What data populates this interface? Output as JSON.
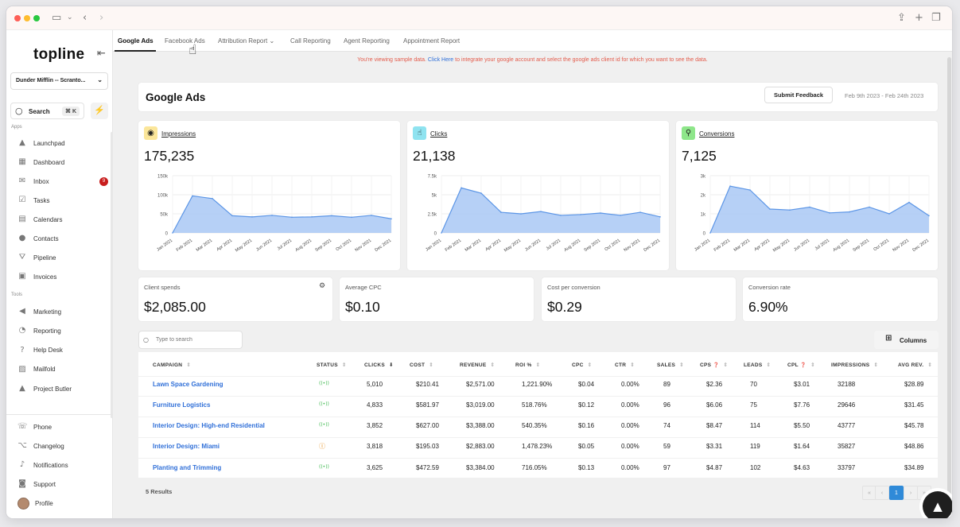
{
  "sidebar": {
    "logo": "topline",
    "account": "Dunder Mifflin -- Scranto...",
    "search_label": "Search",
    "search_shortcut": "⌘ K",
    "apps_section": "Apps",
    "tools_section": "Tools",
    "apps": [
      {
        "label": "Launchpad",
        "icon": "launchpad-icon"
      },
      {
        "label": "Dashboard",
        "icon": "dashboard-icon"
      },
      {
        "label": "Inbox",
        "icon": "inbox-icon",
        "badge": "9"
      },
      {
        "label": "Tasks",
        "icon": "tasks-icon"
      },
      {
        "label": "Calendars",
        "icon": "calendar-icon"
      },
      {
        "label": "Contacts",
        "icon": "contacts-icon"
      },
      {
        "label": "Pipeline",
        "icon": "pipeline-icon"
      },
      {
        "label": "Invoices",
        "icon": "invoices-icon"
      }
    ],
    "tools": [
      {
        "label": "Marketing",
        "icon": "marketing-icon"
      },
      {
        "label": "Reporting",
        "icon": "reporting-icon"
      },
      {
        "label": "Help Desk",
        "icon": "help-desk-icon"
      },
      {
        "label": "Mailfold",
        "icon": "mailfold-icon"
      },
      {
        "label": "Project Butler",
        "icon": "project-butler-icon"
      }
    ],
    "bottom": [
      {
        "label": "Phone",
        "icon": "phone-icon"
      },
      {
        "label": "Changelog",
        "icon": "changelog-icon"
      },
      {
        "label": "Notifications",
        "icon": "notifications-icon"
      },
      {
        "label": "Support",
        "icon": "support-icon"
      },
      {
        "label": "Profile",
        "icon": "avatar"
      }
    ]
  },
  "tabs": [
    "Google Ads",
    "Facebook Ads",
    "Attribution Report ⌄",
    "Call Reporting",
    "Agent Reporting",
    "Appointment Report"
  ],
  "notice": {
    "pre": "You're viewing sample data. ",
    "link": "Click Here",
    "post": " to integrate your google account and select the google ads client id for which you want to see the data."
  },
  "header": {
    "title": "Google Ads",
    "feedback_label": "Submit Feedback",
    "date_range": "Feb 9th 2023 - Feb 24th 2023"
  },
  "colors": {
    "accent": "#2f6fd8",
    "chart_fill": "#a9c8f5",
    "chart_line": "#5b95e6"
  },
  "metrics": [
    {
      "label": "Impressions",
      "value": "175,235",
      "icon": "eye-icon",
      "icon_bg": "#fbe69a"
    },
    {
      "label": "Clicks",
      "value": "21,138",
      "icon": "click-icon",
      "icon_bg": "#8fe3f0"
    },
    {
      "label": "Conversions",
      "value": "7,125",
      "icon": "conversion-icon",
      "icon_bg": "#8ee68a"
    }
  ],
  "chart_data": [
    {
      "type": "area",
      "title": "",
      "categories": [
        "Jan 2021",
        "Feb 2021",
        "Mar 2021",
        "Apr 2021",
        "May 2021",
        "Jun 2021",
        "Jul 2021",
        "Aug 2021",
        "Sep 2021",
        "Oct 2021",
        "Nov 2021",
        "Dec 2021"
      ],
      "values": [
        0,
        97000,
        90000,
        45000,
        42000,
        46000,
        41000,
        42000,
        45000,
        41000,
        46000,
        37000
      ],
      "ylim": [
        0,
        150000
      ],
      "yticks": [
        "150k",
        "100k",
        "50k",
        "0"
      ],
      "grid": true
    },
    {
      "type": "area",
      "title": "",
      "categories": [
        "Jan 2021",
        "Feb 2021",
        "Mar 2021",
        "Apr 2021",
        "May 2021",
        "Jun 2021",
        "Jul 2021",
        "Aug 2021",
        "Sep 2021",
        "Oct 2021",
        "Nov 2021",
        "Dec 2021"
      ],
      "values": [
        0,
        5900,
        5200,
        2700,
        2500,
        2800,
        2300,
        2400,
        2600,
        2300,
        2700,
        2100
      ],
      "ylim": [
        0,
        7500
      ],
      "yticks": [
        "7.5k",
        "5k",
        "2.5k",
        "0"
      ],
      "grid": true
    },
    {
      "type": "area",
      "title": "",
      "categories": [
        "Jan 2021",
        "Feb 2021",
        "Mar 2021",
        "Apr 2021",
        "May 2021",
        "Jun 2021",
        "Jul 2021",
        "Aug 2021",
        "Sep 2021",
        "Oct 2021",
        "Nov 2021",
        "Dec 2021"
      ],
      "values": [
        0,
        2450,
        2250,
        1250,
        1200,
        1350,
        1050,
        1100,
        1350,
        1000,
        1600,
        900
      ],
      "ylim": [
        0,
        3000
      ],
      "yticks": [
        "3k",
        "2k",
        "1k",
        "0"
      ],
      "grid": true
    }
  ],
  "summary": [
    {
      "label": "Client spends",
      "value": "$2,085.00"
    },
    {
      "label": "Average CPC",
      "value": "$0.10"
    },
    {
      "label": "Cost per conversion",
      "value": "$0.29"
    },
    {
      "label": "Conversion rate",
      "value": "6.90%"
    }
  ],
  "table": {
    "search_placeholder": "Type to search",
    "columns_label": "Columns",
    "headers": [
      "CAMPAIGN",
      "STATUS",
      "CLICKS",
      "COST",
      "REVENUE",
      "ROI %",
      "CPC",
      "CTR",
      "SALES",
      "CPS",
      "LEADS",
      "CPL",
      "IMPRESSIONS",
      "AVG REV."
    ],
    "rows": [
      {
        "campaign": "Lawn Space Gardening",
        "status": "active",
        "clicks": "5,010",
        "cost": "$210.41",
        "revenue": "$2,571.00",
        "roi": "1,221.90%",
        "cpc": "$0.04",
        "ctr": "0.00%",
        "sales": "89",
        "cps": "$2.36",
        "leads": "70",
        "cpl": "$3.01",
        "impressions": "32188",
        "avg_rev": "$28.89"
      },
      {
        "campaign": "Furniture Logistics",
        "status": "active",
        "clicks": "4,833",
        "cost": "$581.97",
        "revenue": "$3,019.00",
        "roi": "518.76%",
        "cpc": "$0.12",
        "ctr": "0.00%",
        "sales": "96",
        "cps": "$6.06",
        "leads": "75",
        "cpl": "$7.76",
        "impressions": "29646",
        "avg_rev": "$31.45"
      },
      {
        "campaign": "Interior Design: High-end Residential",
        "status": "active",
        "clicks": "3,852",
        "cost": "$627.00",
        "revenue": "$3,388.00",
        "roi": "540.35%",
        "cpc": "$0.16",
        "ctr": "0.00%",
        "sales": "74",
        "cps": "$8.47",
        "leads": "114",
        "cpl": "$5.50",
        "impressions": "43777",
        "avg_rev": "$45.78"
      },
      {
        "campaign": "Interior Design: Miami",
        "status": "paused",
        "clicks": "3,818",
        "cost": "$195.03",
        "revenue": "$2,883.00",
        "roi": "1,478.23%",
        "cpc": "$0.05",
        "ctr": "0.00%",
        "sales": "59",
        "cps": "$3.31",
        "leads": "119",
        "cpl": "$1.64",
        "impressions": "35827",
        "avg_rev": "$48.86"
      },
      {
        "campaign": "Planting and Trimming",
        "status": "active",
        "clicks": "3,625",
        "cost": "$472.59",
        "revenue": "$3,384.00",
        "roi": "716.05%",
        "cpc": "$0.13",
        "ctr": "0.00%",
        "sales": "97",
        "cps": "$4.87",
        "leads": "102",
        "cpl": "$4.63",
        "impressions": "33797",
        "avg_rev": "$34.89"
      }
    ],
    "results": "5 Results",
    "pagination": {
      "first": "«",
      "prev": "‹",
      "current": "1",
      "next": "›",
      "last": "»"
    }
  }
}
